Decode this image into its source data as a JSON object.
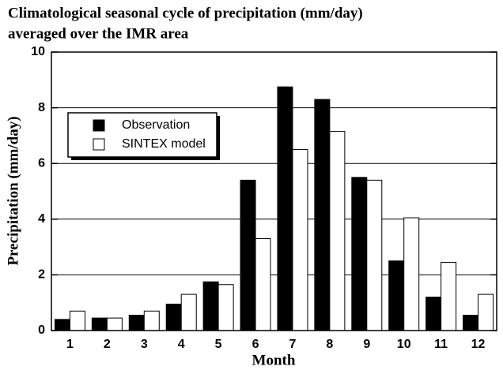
{
  "chart_data": {
    "type": "bar",
    "title": [
      "Climatological seasonal cycle of precipitation (mm/day)",
      "averaged over the IMR area"
    ],
    "xlabel": "Month",
    "ylabel": "Precipitation (mm/day)",
    "categories": [
      "1",
      "2",
      "3",
      "4",
      "5",
      "6",
      "7",
      "8",
      "9",
      "10",
      "11",
      "12"
    ],
    "series": [
      {
        "name": "Observation",
        "color": "#000000",
        "values": [
          0.4,
          0.45,
          0.55,
          0.95,
          1.75,
          5.4,
          8.75,
          8.3,
          5.5,
          2.5,
          1.2,
          0.55
        ]
      },
      {
        "name": "SINTEX model",
        "color": "#ffffff",
        "values": [
          0.7,
          0.45,
          0.7,
          1.3,
          1.65,
          3.3,
          6.5,
          7.15,
          5.4,
          4.05,
          2.45,
          1.3
        ]
      }
    ],
    "ylim": [
      0,
      10
    ],
    "yticks": [
      0,
      2,
      4,
      6,
      8,
      10
    ],
    "grid": true,
    "legend": "upper left"
  }
}
